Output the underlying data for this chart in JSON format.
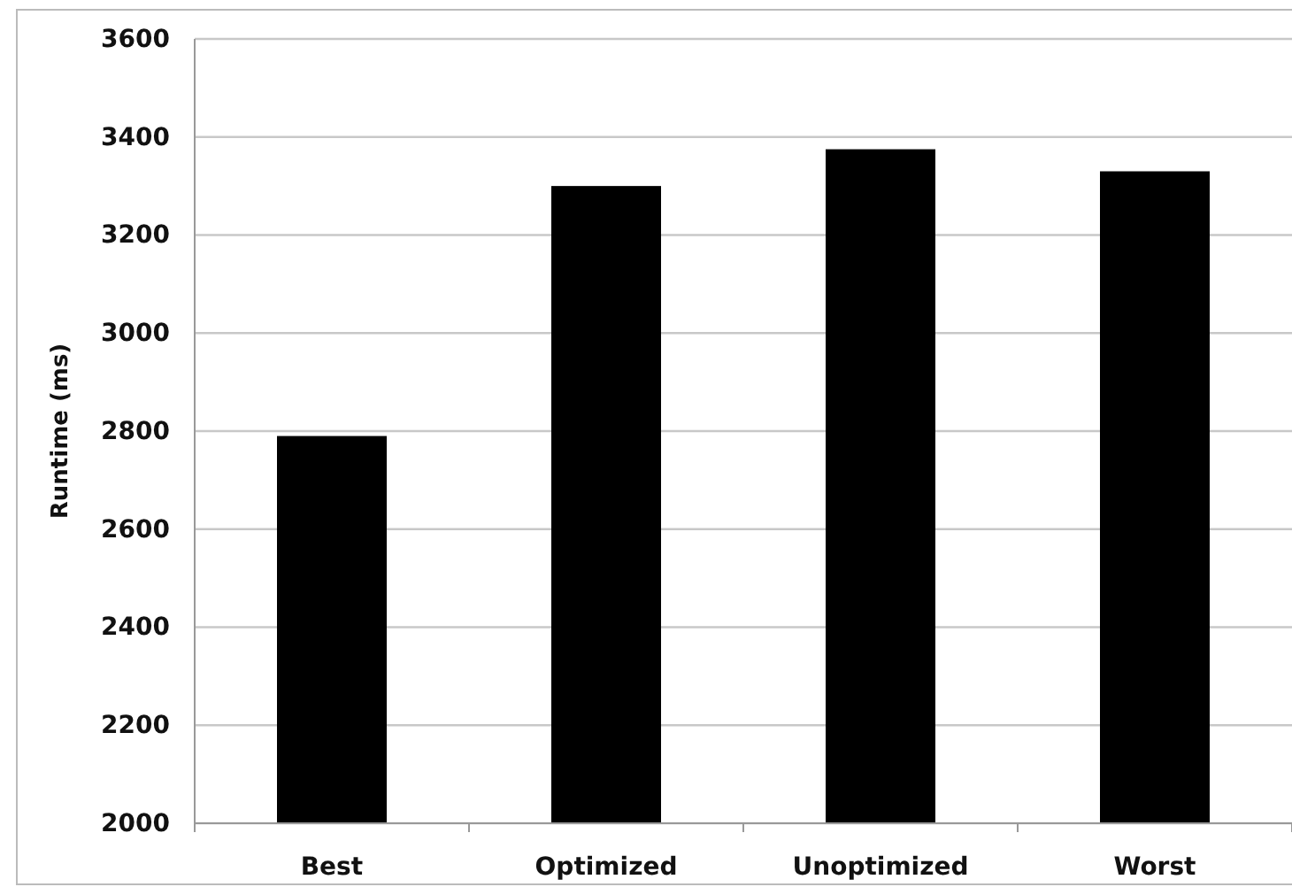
{
  "chart_data": {
    "type": "bar",
    "ylabel": "Runtime (ms)",
    "categories": [
      "Best",
      "Optimized",
      "Unoptimized",
      "Worst"
    ],
    "values": [
      2790,
      3300,
      3375,
      3330
    ],
    "color": "#000000",
    "ylim": [
      2000,
      3600
    ],
    "yticks": [
      2000,
      2200,
      2400,
      2600,
      2800,
      3000,
      3200,
      3400,
      3600
    ],
    "grid": "y"
  }
}
